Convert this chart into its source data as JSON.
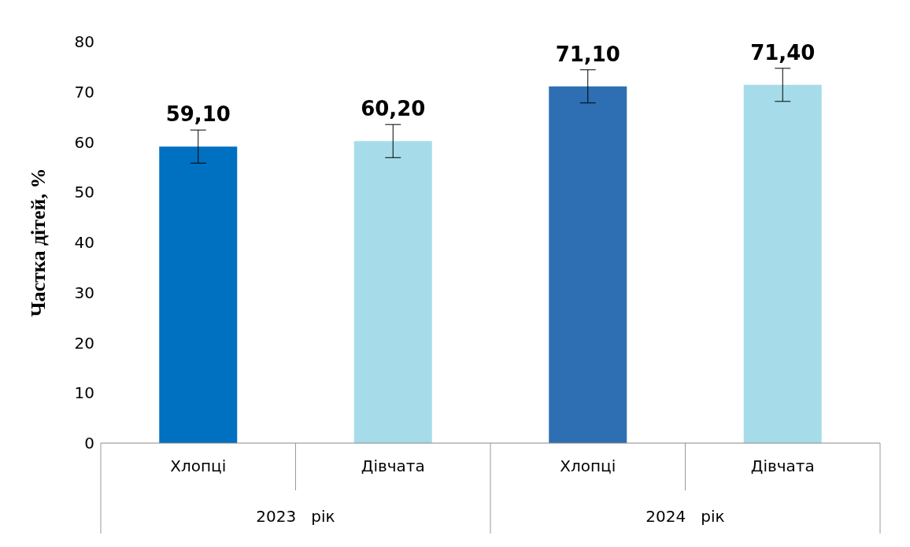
{
  "chart_data": {
    "type": "bar",
    "ylabel": "Частка  дітей, %",
    "categories": [
      "Хлопці",
      "Дівчата",
      "Хлопці",
      "Дівчата"
    ],
    "values": [
      59.1,
      60.2,
      71.1,
      71.4
    ],
    "colors": [
      "#0070c0",
      "#a6dcea",
      "#2e6fb3",
      "#a6dcea"
    ],
    "errors": [
      3.3,
      3.3,
      3.3,
      3.3
    ],
    "value_labels": [
      "59,10",
      "60,20",
      "71,10",
      "71,40"
    ],
    "annotations": [
      "2023   рік",
      "2024   рік"
    ],
    "ylim": [
      0,
      80
    ],
    "yticks": [
      0,
      10,
      20,
      30,
      40,
      50,
      60,
      70,
      80
    ]
  }
}
